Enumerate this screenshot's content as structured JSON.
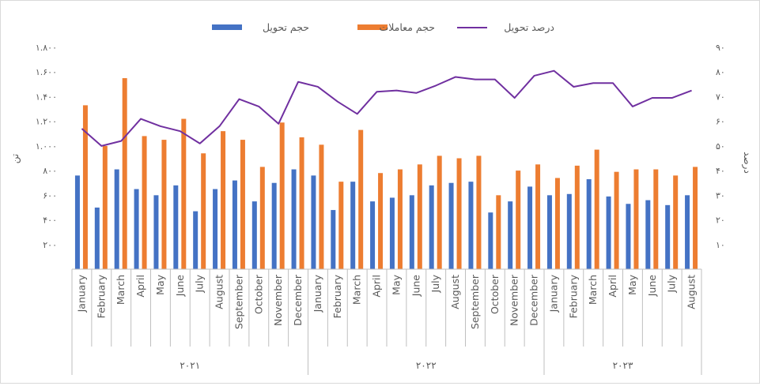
{
  "chart_data": {
    "type": "bar",
    "legend": {
      "position": "top",
      "items": [
        {
          "key": "delivery_volume",
          "label": "حجم تحویل",
          "kind": "bar",
          "color": "#4472C4"
        },
        {
          "key": "trade_volume",
          "label": "حجم معاملات",
          "kind": "bar",
          "color": "#ED7D31"
        },
        {
          "key": "delivery_pct",
          "label": "درصد تحویل",
          "kind": "line",
          "color": "#7030A0"
        }
      ]
    },
    "y_left": {
      "label": "تن",
      "range": [
        0,
        1800
      ],
      "ticks": [
        200,
        400,
        600,
        800,
        1000,
        1200,
        1400,
        1600,
        1800
      ],
      "tick_labels": [
        "۲۰۰",
        "۴۰۰",
        "۶۰۰",
        "۸۰۰",
        "۱.۰۰۰",
        "۱.۲۰۰",
        "۱.۴۰۰",
        "۱.۶۰۰",
        "۱.۸۰۰"
      ]
    },
    "y_right": {
      "label": "درصد",
      "range": [
        0,
        90
      ],
      "ticks": [
        10,
        20,
        30,
        40,
        50,
        60,
        70,
        80,
        90
      ],
      "tick_labels": [
        "۱۰",
        "۲۰",
        "۳۰",
        "۴۰",
        "۵۰",
        "۶۰",
        "۷۰",
        "۸۰",
        "۹۰"
      ]
    },
    "years": [
      {
        "label": "۲۰۲۱",
        "count": 12
      },
      {
        "label": "۲۰۲۲",
        "count": 12
      },
      {
        "label": "۲۰۲۳",
        "count": 8
      }
    ],
    "categories": [
      "January",
      "February",
      "March",
      "April",
      "May",
      "June",
      "July",
      "August",
      "September",
      "October",
      "November",
      "December",
      "January",
      "February",
      "March",
      "April",
      "May",
      "June",
      "July",
      "August",
      "September",
      "October",
      "November",
      "December",
      "January",
      "February",
      "March",
      "April",
      "May",
      "June",
      "July",
      "August"
    ],
    "series": [
      {
        "name": "حجم تحویل",
        "key": "delivery_volume",
        "axis": "left",
        "values": [
          760,
          500,
          810,
          650,
          600,
          680,
          470,
          650,
          720,
          550,
          700,
          810,
          760,
          480,
          710,
          550,
          580,
          600,
          680,
          700,
          710,
          460,
          550,
          670,
          600,
          610,
          730,
          590,
          530,
          560,
          520,
          600
        ]
      },
      {
        "name": "حجم معاملات",
        "key": "trade_volume",
        "axis": "left",
        "values": [
          1330,
          1000,
          1550,
          1080,
          1050,
          1220,
          940,
          1120,
          1050,
          830,
          1190,
          1070,
          1010,
          710,
          1130,
          780,
          810,
          850,
          920,
          900,
          920,
          600,
          800,
          850,
          740,
          840,
          970,
          790,
          810,
          810,
          760,
          830
        ]
      },
      {
        "name": "درصد تحویل",
        "key": "delivery_pct",
        "axis": "right",
        "values": [
          57,
          50,
          52,
          61,
          58,
          56,
          51,
          58,
          69,
          66,
          59,
          76,
          74,
          68,
          63,
          72,
          72.5,
          71.5,
          74.5,
          78,
          77,
          77,
          69.5,
          78.5,
          80.5,
          74,
          75.5,
          75.5,
          66,
          69.5,
          69.5,
          72.5
        ]
      }
    ]
  }
}
